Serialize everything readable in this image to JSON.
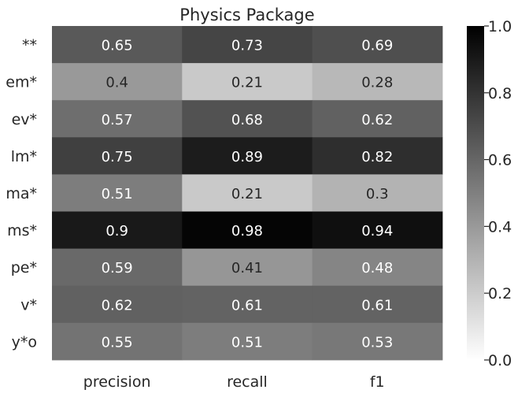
{
  "chart_data": {
    "type": "heatmap",
    "title": "Physics Package",
    "xlabel": "",
    "ylabel": "",
    "x_categories": [
      "precision",
      "recall",
      "f1"
    ],
    "y_categories": [
      "**",
      "em*",
      "ev*",
      "lm*",
      "ma*",
      "ms*",
      "pe*",
      "v*",
      "y*o"
    ],
    "values": [
      [
        0.65,
        0.73,
        0.69
      ],
      [
        0.4,
        0.21,
        0.28
      ],
      [
        0.57,
        0.68,
        0.62
      ],
      [
        0.75,
        0.89,
        0.82
      ],
      [
        0.51,
        0.21,
        0.3
      ],
      [
        0.9,
        0.98,
        0.94
      ],
      [
        0.59,
        0.41,
        0.48
      ],
      [
        0.62,
        0.61,
        0.61
      ],
      [
        0.55,
        0.51,
        0.53
      ]
    ],
    "colormap": "greys",
    "vmin": 0.0,
    "vmax": 1.0,
    "colorbar_ticks": [
      "0.0",
      "0.2",
      "0.4",
      "0.6",
      "0.8",
      "1.0"
    ],
    "colorbar_tick_values": [
      0.0,
      0.2,
      0.4,
      0.6,
      0.8,
      1.0
    ],
    "cell_annotations": true,
    "grid": false
  }
}
